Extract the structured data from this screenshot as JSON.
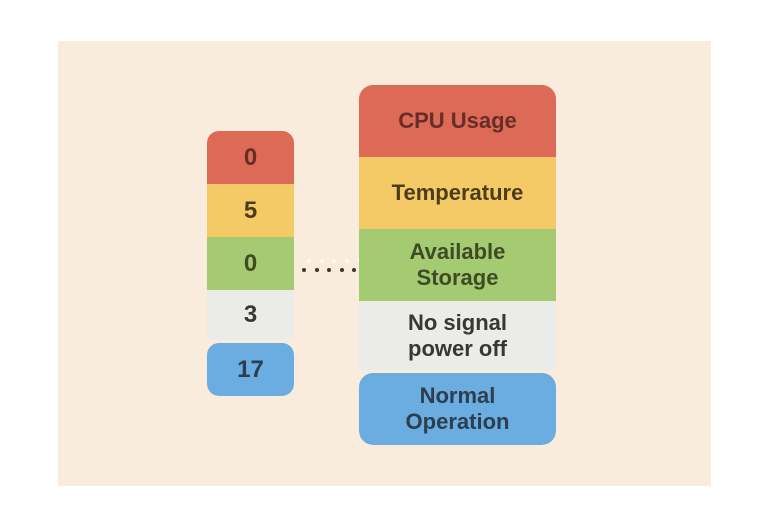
{
  "panel": {
    "background_color": "#faecdc",
    "page_background_color": "#ffffff"
  },
  "statuses": [
    {
      "id": "cpu-usage",
      "value": "0",
      "label": "CPU Usage",
      "lines": [
        "CPU Usage"
      ],
      "color": "#dd6a57",
      "text_color": "#662e27"
    },
    {
      "id": "temperature",
      "value": "5",
      "label": "Temperature",
      "lines": [
        "Temperature"
      ],
      "color": "#f4ca66",
      "text_color": "#4c3c1c"
    },
    {
      "id": "available-storage",
      "value": "0",
      "label": "Available Storage",
      "lines": [
        "Available",
        "Storage"
      ],
      "color": "#a4ca72",
      "text_color": "#3f4b23"
    },
    {
      "id": "no-signal-power-off",
      "value": "3",
      "label": "No signal power off",
      "lines": [
        "No signal",
        "power off"
      ],
      "color": "#ebebe7",
      "text_color": "#373735"
    },
    {
      "id": "normal-operation",
      "value": "17",
      "label": "Normal Operation",
      "lines": [
        "Normal",
        "Operation"
      ],
      "color": "#6bade0",
      "text_color": "#2d3e4e"
    }
  ],
  "connector": {
    "dot_count": 5,
    "dark_color": "#3a352f",
    "light_color": "#fff6ea"
  }
}
